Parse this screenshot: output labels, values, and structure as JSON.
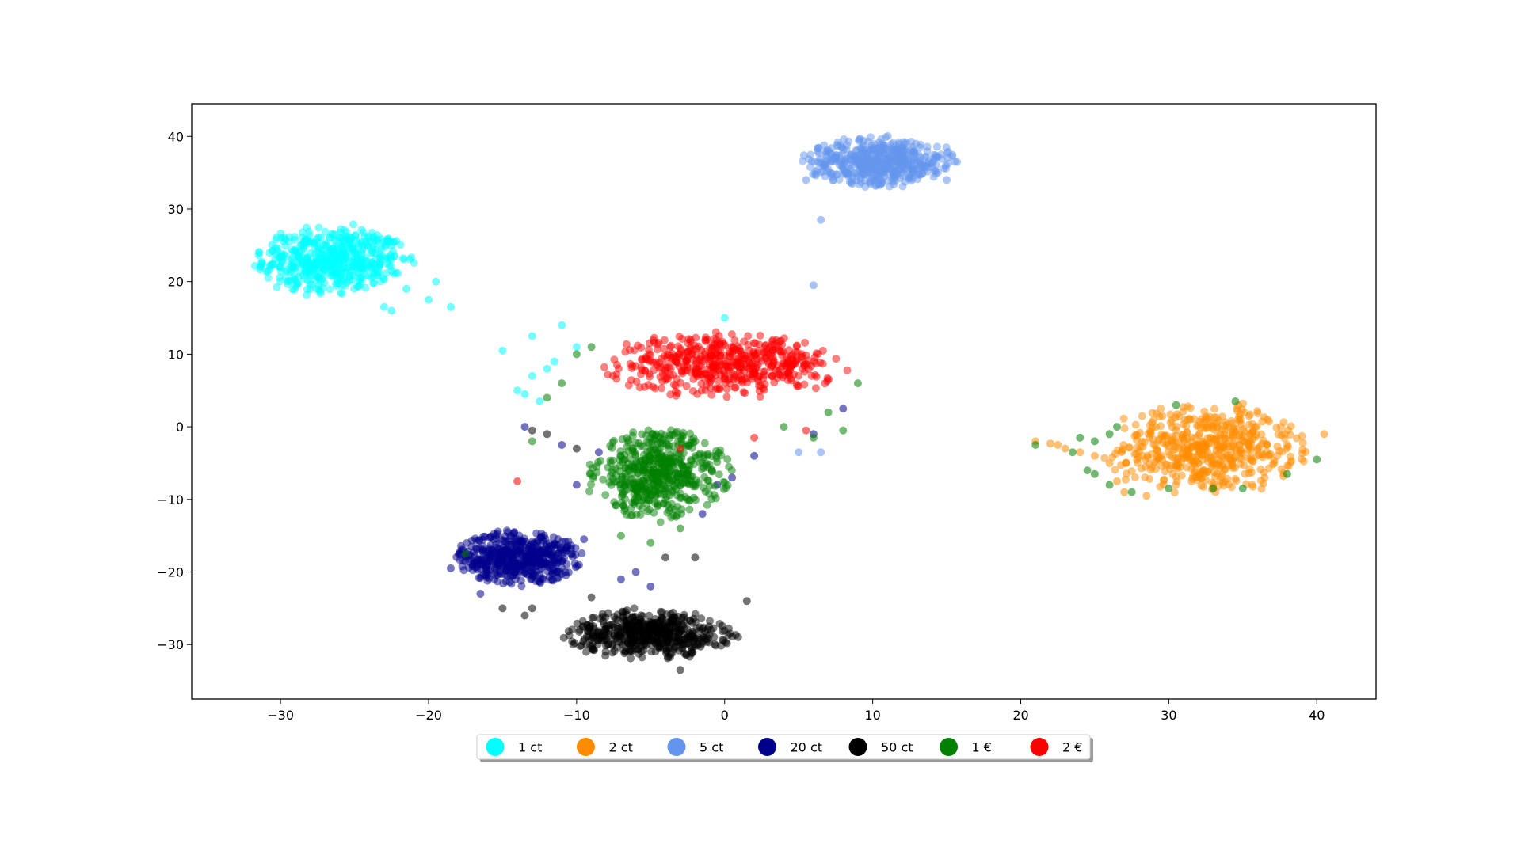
{
  "chart_data": {
    "type": "scatter",
    "title": "",
    "xlabel": "",
    "ylabel": "",
    "xlim": [
      -36,
      44
    ],
    "ylim": [
      -37.5,
      44.5
    ],
    "xticks": [
      -30,
      -20,
      -10,
      0,
      10,
      20,
      30,
      40
    ],
    "yticks": [
      -30,
      -20,
      -10,
      0,
      10,
      20,
      30,
      40
    ],
    "xtick_labels": [
      "−30",
      "−20",
      "−10",
      "0",
      "10",
      "20",
      "30",
      "40"
    ],
    "ytick_labels": [
      "−30",
      "−20",
      "−10",
      "0",
      "10",
      "20",
      "30",
      "40"
    ],
    "grid": false,
    "legend_position": "bottom-center, below the axes, single row",
    "series": [
      {
        "name": "1 ct",
        "color": "#00FFFF",
        "cluster_center": [
          -26.5,
          23
        ],
        "cluster_spread": [
          5.5,
          5
        ],
        "outlier_points": [
          [
            -21.5,
            19
          ],
          [
            -20,
            17.5
          ],
          [
            -19.5,
            20
          ],
          [
            -18.5,
            16.5
          ],
          [
            -22.5,
            16
          ],
          [
            -23,
            16.5
          ],
          [
            -15,
            10.5
          ],
          [
            -13,
            12.5
          ],
          [
            -11,
            14
          ],
          [
            -13,
            7
          ],
          [
            -12,
            8
          ],
          [
            -14,
            5
          ],
          [
            -11.5,
            9
          ],
          [
            -12.5,
            3.5
          ],
          [
            -13.5,
            4.5
          ],
          [
            0,
            15
          ],
          [
            -10,
            11
          ]
        ]
      },
      {
        "name": "2 ct",
        "color": "#FF8C00",
        "cluster_center": [
          32.5,
          -3
        ],
        "cluster_spread": [
          7,
          6.5
        ],
        "outlier_points": [
          [
            21,
            -2
          ],
          [
            22.5,
            -2.5
          ],
          [
            24,
            -3.5
          ],
          [
            25,
            -4
          ],
          [
            26,
            -5
          ],
          [
            26.5,
            -7.5
          ],
          [
            27,
            -9
          ],
          [
            28.5,
            -9.5
          ],
          [
            40.5,
            -1
          ],
          [
            23,
            -3
          ],
          [
            22,
            -2.3
          ]
        ]
      },
      {
        "name": "5 ct",
        "color": "#6495ED",
        "cluster_center": [
          10.5,
          36.5
        ],
        "cluster_spread": [
          5.5,
          3.5
        ],
        "outlier_points": [
          [
            6.5,
            28.5
          ],
          [
            6,
            19.5
          ],
          [
            5,
            -3.5
          ],
          [
            6.5,
            -3.5
          ],
          [
            15,
            34
          ],
          [
            5.5,
            34
          ]
        ]
      },
      {
        "name": "20 ct",
        "color": "#00008B",
        "cluster_center": [
          -14,
          -18
        ],
        "cluster_spread": [
          4.5,
          4
        ],
        "outlier_points": [
          [
            -13.5,
            0
          ],
          [
            -11,
            -2.5
          ],
          [
            -8.5,
            -3.5
          ],
          [
            -10,
            -8
          ],
          [
            -7,
            -21
          ],
          [
            -9.5,
            -15.5
          ],
          [
            -6,
            -20
          ],
          [
            -5,
            -22
          ],
          [
            -16.5,
            -23
          ],
          [
            -18.5,
            -19.5
          ],
          [
            -1.5,
            -12
          ],
          [
            -0.5,
            -8
          ],
          [
            0.5,
            -7
          ],
          [
            2,
            -4
          ],
          [
            6,
            -1
          ],
          [
            8,
            2.5
          ]
        ]
      },
      {
        "name": "50 ct",
        "color": "#000000",
        "cluster_center": [
          -5,
          -28.5
        ],
        "cluster_spread": [
          6,
          3.5
        ],
        "outlier_points": [
          [
            -13,
            -0.5
          ],
          [
            -12,
            -1
          ],
          [
            -10,
            -3
          ],
          [
            -13,
            -25
          ],
          [
            -13.5,
            -26
          ],
          [
            -15,
            -25
          ],
          [
            -4,
            -18
          ],
          [
            -2,
            -18
          ],
          [
            -3,
            -33.5
          ],
          [
            1.5,
            -24
          ],
          [
            -9,
            -23.5
          ]
        ]
      },
      {
        "name": "1 €",
        "color": "#008000",
        "cluster_center": [
          -4.5,
          -6.5
        ],
        "cluster_spread": [
          5,
          6.5
        ],
        "outlier_points": [
          [
            -12,
            4
          ],
          [
            -11,
            6
          ],
          [
            -10,
            10
          ],
          [
            -9,
            11
          ],
          [
            -13,
            -2
          ],
          [
            -7,
            -15
          ],
          [
            -5,
            -16
          ],
          [
            -3,
            -14
          ],
          [
            6,
            -1.5
          ],
          [
            8,
            -0.5
          ],
          [
            9,
            6
          ],
          [
            7,
            2
          ],
          [
            4,
            0
          ],
          [
            21,
            -2.5
          ],
          [
            23.5,
            -3.5
          ],
          [
            24.5,
            -6
          ],
          [
            25,
            -6.5
          ],
          [
            26,
            -8
          ],
          [
            27.5,
            -9
          ],
          [
            30,
            -8.5
          ],
          [
            33,
            -8.5
          ],
          [
            35,
            -8.5
          ],
          [
            38,
            -6.5
          ],
          [
            40,
            -4.5
          ],
          [
            34.5,
            3.5
          ],
          [
            30.5,
            3
          ],
          [
            26.5,
            0
          ],
          [
            26,
            -1
          ],
          [
            25,
            -2
          ],
          [
            24,
            -1.5
          ],
          [
            -17.5,
            -17.5
          ]
        ]
      },
      {
        "name": "2 €",
        "color": "#FF0000",
        "cluster_center": [
          0,
          8.5
        ],
        "cluster_spread": [
          8.5,
          4.5
        ],
        "outlier_points": [
          [
            -14,
            -7.5
          ],
          [
            -3,
            -3
          ],
          [
            2,
            -1.5
          ],
          [
            5.5,
            -0.5
          ]
        ]
      }
    ]
  }
}
